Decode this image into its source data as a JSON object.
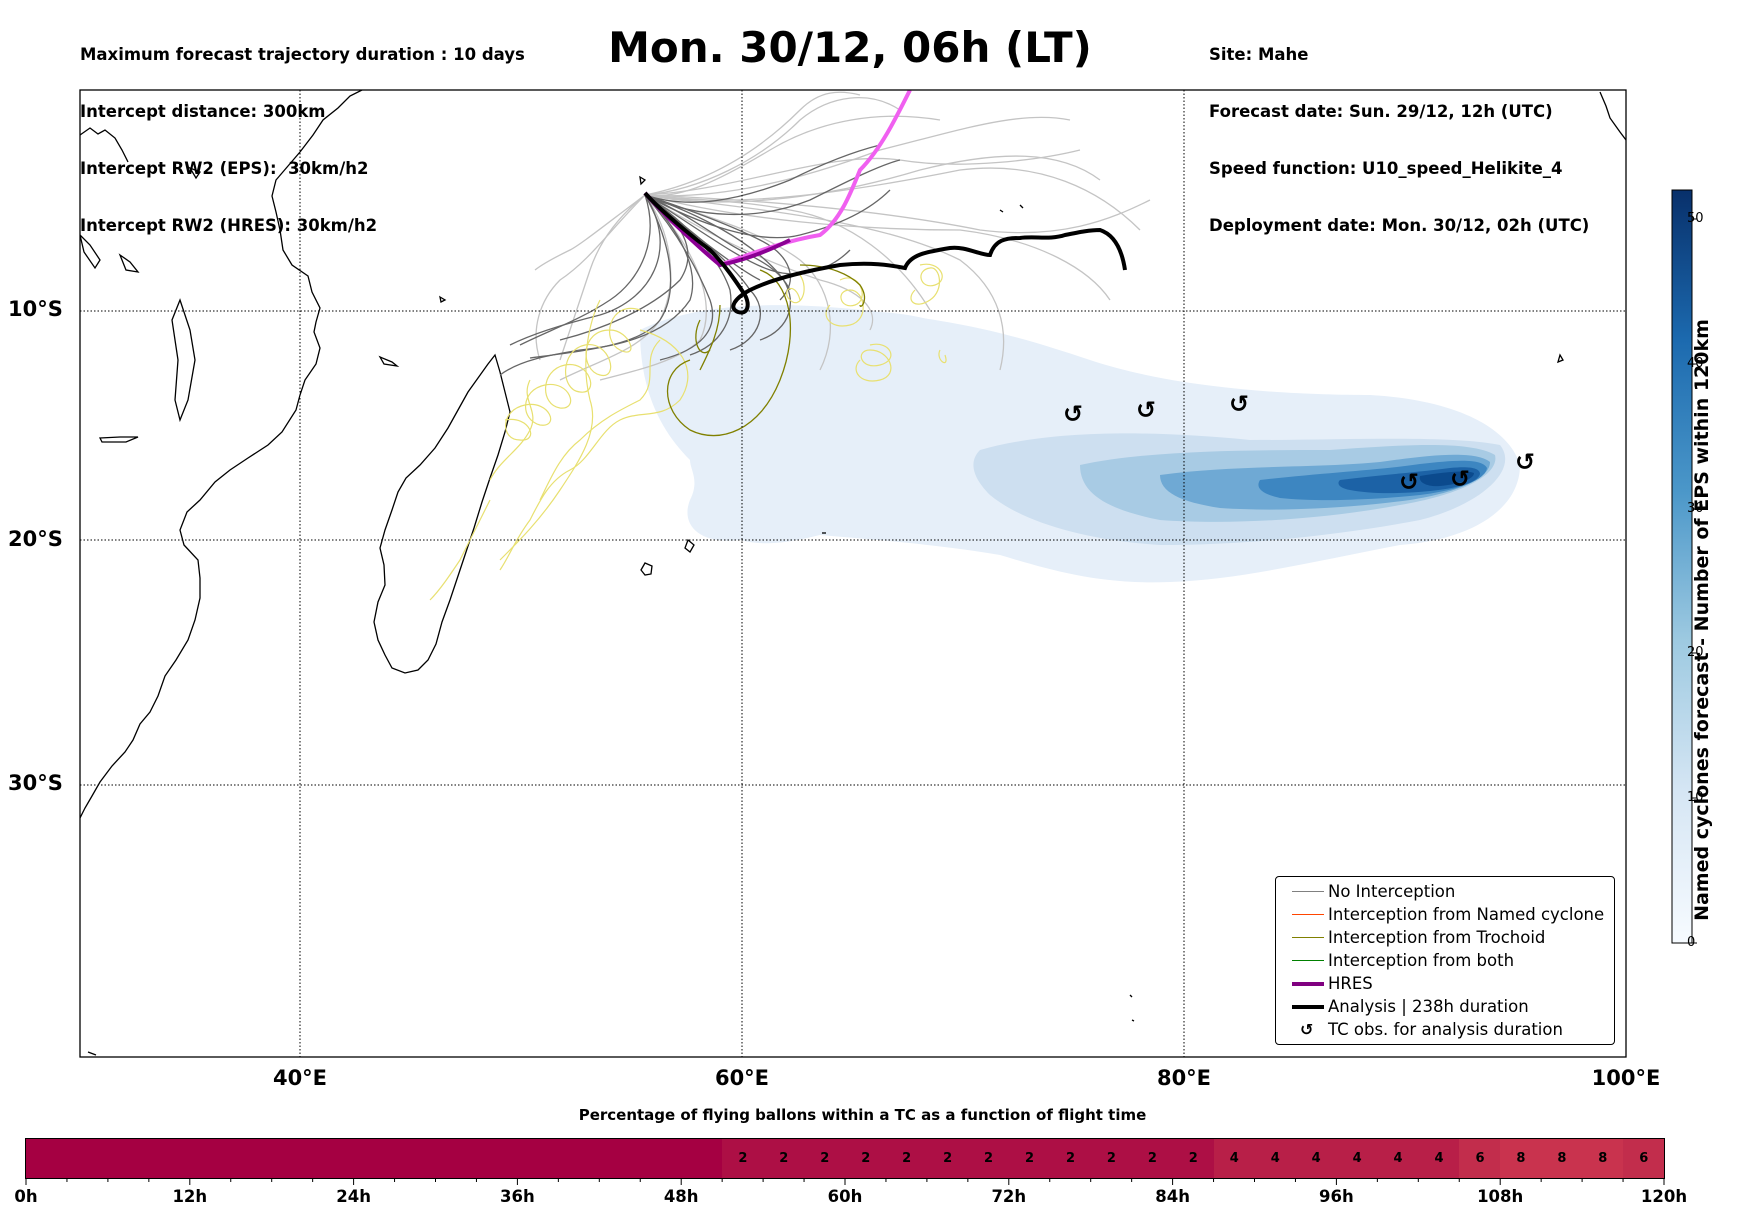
{
  "info_left": [
    "Maximum forecast trajectory duration : 10 days",
    "Intercept distance: 300km",
    "Intercept RW2 (EPS):  30km/h2",
    "Intercept RW2 (HRES): 30km/h2"
  ],
  "info_right": [
    "Site: Mahe",
    "Forecast date: Sun. 29/12, 12h (UTC)",
    "Speed function: U10_speed_Helikite_4",
    "Deployment date: Mon. 30/12, 02h (UTC)"
  ],
  "title": "Mon. 30/12, 06h (LT)",
  "map": {
    "lat_labels": [
      "10°S",
      "20°S",
      "30°S"
    ],
    "lon_labels": [
      "40°E",
      "60°E",
      "80°E",
      "100°E"
    ],
    "extent": {
      "lon_min": 30,
      "lon_max": 100,
      "lat_min": -43.7,
      "lat_max": 0
    }
  },
  "colorbar": {
    "title": "Named cyclones forecast - Number of EPS within 120km",
    "ticks": [
      "0",
      "10",
      "20",
      "30",
      "40",
      "50"
    ],
    "range": [
      0,
      52
    ],
    "color_low": "#f7fbff",
    "color_high": "#08306b"
  },
  "legend": [
    {
      "label": "No Interception",
      "color": "#808080",
      "style": "line"
    },
    {
      "label": "Interception from Named cyclone",
      "color": "#ff4500",
      "style": "line"
    },
    {
      "label": "Interception from Trochoid",
      "color": "#808000",
      "style": "line"
    },
    {
      "label": "Interception from both",
      "color": "#008000",
      "style": "line"
    },
    {
      "label": "HRES",
      "color": "#800080",
      "style": "thick"
    },
    {
      "label": "Analysis | 238h duration",
      "color": "#000000",
      "style": "thick"
    },
    {
      "label": "TC obs. for analysis duration",
      "color": "#000000",
      "style": "symbol",
      "symbol": "↺"
    }
  ],
  "tc_obs_symbol": "↺",
  "flight_bar": {
    "title": "Percentage of flying ballons within a TC as a function of flight time",
    "hour_labels": [
      "0h",
      "12h",
      "24h",
      "36h",
      "48h",
      "60h",
      "72h",
      "84h",
      "96h",
      "108h",
      "120h"
    ],
    "hours_max": 120,
    "cell_hours": 3,
    "percent_by_3h": [
      0,
      0,
      0,
      0,
      0,
      0,
      0,
      0,
      0,
      0,
      0,
      0,
      0,
      0,
      0,
      0,
      0,
      2,
      2,
      2,
      2,
      2,
      2,
      2,
      2,
      2,
      2,
      2,
      2,
      4,
      4,
      4,
      4,
      4,
      4,
      6,
      8,
      8,
      8,
      6
    ],
    "colors": {
      "0": "#a50042",
      "2": "#ad0f45",
      "4": "#b81f48",
      "6": "#c22d4c",
      "8": "#c9334e"
    }
  }
}
